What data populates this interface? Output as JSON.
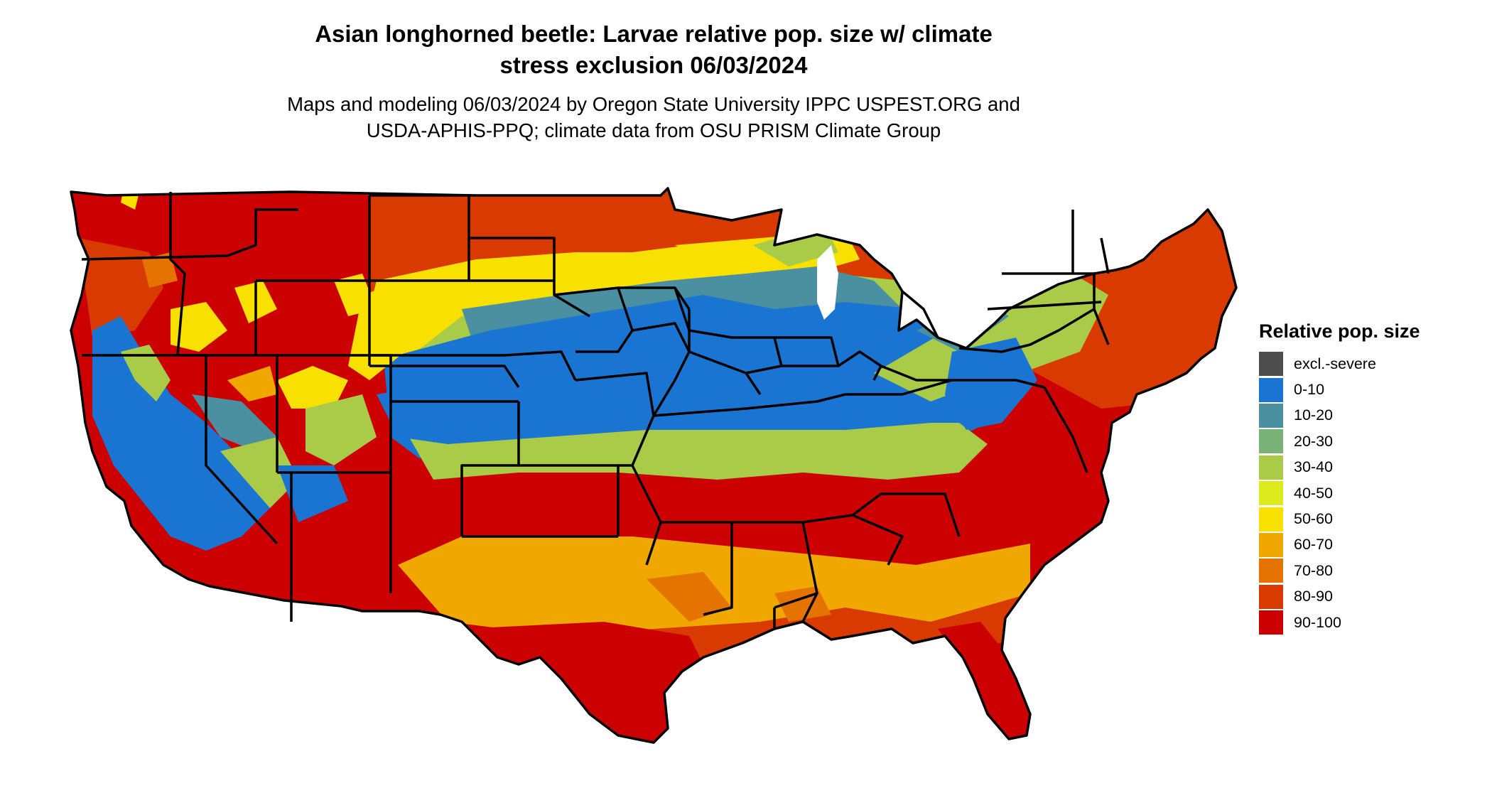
{
  "title": {
    "line1": "Asian longhorned beetle: Larvae relative pop. size w/ climate",
    "line2": "stress exclusion 06/03/2024"
  },
  "subtitle": {
    "line1": "Maps and modeling 06/03/2024 by Oregon State University IPPC USPEST.ORG and",
    "line2": "USDA-APHIS-PPQ; climate data from OSU PRISM Climate Group"
  },
  "legend": {
    "title": "Relative pop. size",
    "items": [
      {
        "label": "excl.-severe",
        "color": "#4d4d4d"
      },
      {
        "label": "0-10",
        "color": "#1a75d2"
      },
      {
        "label": "10-20",
        "color": "#4a90a0"
      },
      {
        "label": "20-30",
        "color": "#7ab378"
      },
      {
        "label": "30-40",
        "color": "#aacb48"
      },
      {
        "label": "40-50",
        "color": "#dceb1e"
      },
      {
        "label": "50-60",
        "color": "#f8e000"
      },
      {
        "label": "60-70",
        "color": "#f0a800"
      },
      {
        "label": "70-80",
        "color": "#e57300"
      },
      {
        "label": "80-90",
        "color": "#d93a00"
      },
      {
        "label": "90-100",
        "color": "#cc0000"
      }
    ]
  },
  "map_colors": {
    "border": "#000000",
    "ocean": "#ffffff"
  }
}
